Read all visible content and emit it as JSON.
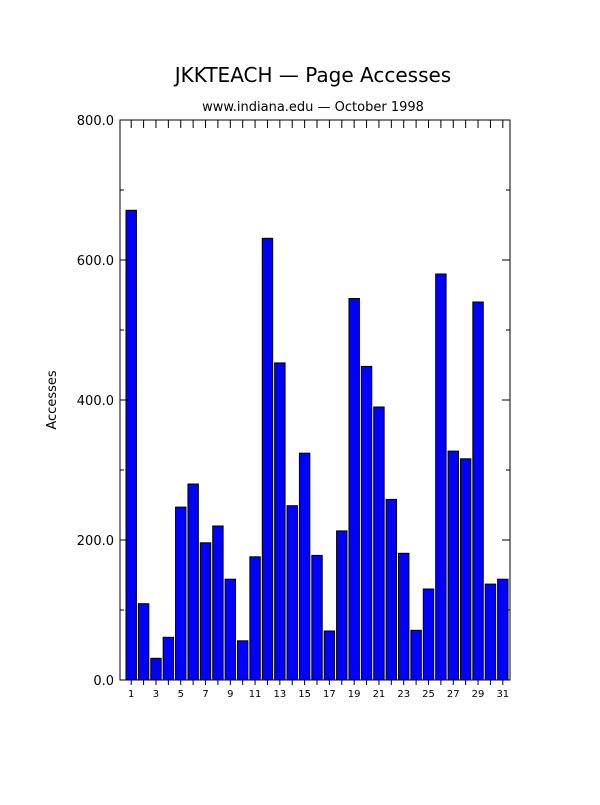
{
  "chart_data": {
    "type": "bar",
    "title": "JKKTEACH — Page Accesses",
    "subtitle": "www.indiana.edu — October 1998",
    "xlabel": "",
    "ylabel": "Accesses",
    "ylim": [
      0,
      800
    ],
    "y_ticks": [
      "0.0",
      "200.0",
      "400.0",
      "600.0",
      "800.0"
    ],
    "categories": [
      "1",
      "2",
      "3",
      "4",
      "5",
      "6",
      "7",
      "8",
      "9",
      "10",
      "11",
      "12",
      "13",
      "14",
      "15",
      "16",
      "17",
      "18",
      "19",
      "20",
      "21",
      "22",
      "23",
      "24",
      "25",
      "26",
      "27",
      "28",
      "29",
      "30",
      "31"
    ],
    "x_tick_labels": [
      "1",
      "3",
      "5",
      "7",
      "9",
      "11",
      "13",
      "15",
      "17",
      "19",
      "21",
      "23",
      "25",
      "27",
      "29",
      "31"
    ],
    "values": [
      671,
      109,
      31,
      61,
      247,
      280,
      196,
      220,
      144,
      56,
      176,
      631,
      453,
      249,
      324,
      178,
      70,
      213,
      545,
      448,
      390,
      258,
      181,
      71,
      130,
      580,
      327,
      316,
      540,
      137,
      144
    ],
    "bar_color": "#0000ff",
    "grid": false
  }
}
